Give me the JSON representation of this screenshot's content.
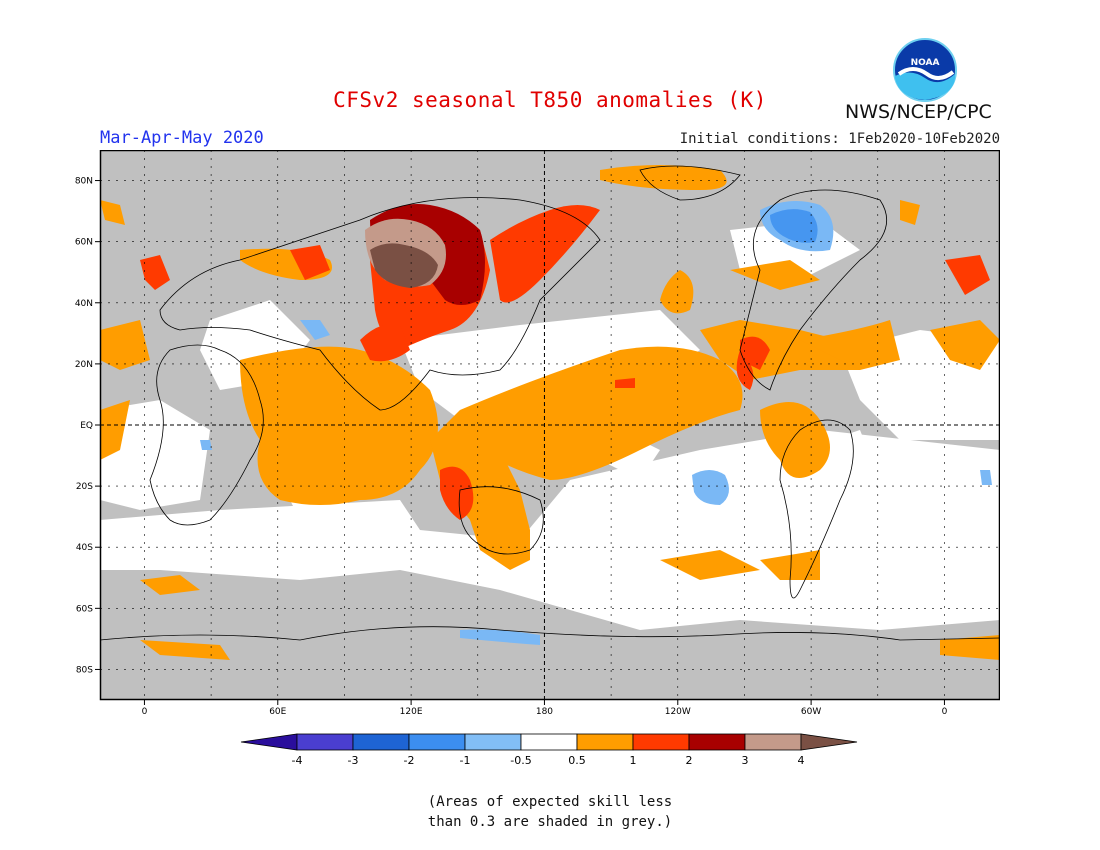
{
  "header": {
    "title": "CFSv2 seasonal T850 anomalies (K)",
    "period": "Mar-Apr-May 2020",
    "initial_conditions": "Initial conditions: 1Feb2020-10Feb2020",
    "agency": "NWS/NCEP/CPC",
    "logo_text": "NOAA"
  },
  "map": {
    "lat_labels": [
      "80N",
      "60N",
      "40N",
      "20N",
      "EQ",
      "20S",
      "40S",
      "60S",
      "80S"
    ],
    "lat_values": [
      80,
      60,
      40,
      20,
      0,
      -20,
      -40,
      -60,
      -80
    ],
    "lon_labels": [
      "0",
      "60E",
      "120E",
      "180",
      "120W",
      "60W",
      "0"
    ],
    "lon_values": [
      0,
      60,
      120,
      180,
      240,
      300,
      360
    ],
    "lon_range": [
      -20,
      385
    ],
    "lat_range": [
      -90,
      90
    ],
    "colors": {
      "skill_mask": "#c0c0c0",
      "neutral": "#ffffff",
      "warm_05_1": "#ff9d00",
      "warm_1_2": "#ff3a00",
      "warm_2_3": "#a80000",
      "warm_3_4": "#c49a8a",
      "warm_gt4": "#7a5044",
      "cool_05_1": "#7ab8f5",
      "cool_1_2": "#4696f0"
    }
  },
  "colorbar": {
    "labels": [
      "-4",
      "-3",
      "-2",
      "-1",
      "-0.5",
      "0.5",
      "1",
      "2",
      "3",
      "4"
    ],
    "colors": [
      "#2a0e9c",
      "#4a3ed0",
      "#1e64d4",
      "#3c8ef0",
      "#82bef6",
      "#ffffff",
      "#ff9d00",
      "#ff3a00",
      "#a80000",
      "#c49a8a",
      "#7a5044"
    ]
  },
  "note": {
    "line1": "(Areas of expected skill less",
    "line2": "than 0.3 are shaded in grey.)"
  }
}
